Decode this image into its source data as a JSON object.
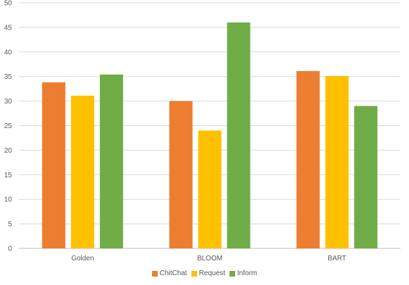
{
  "chart_data": {
    "type": "bar",
    "categories": [
      "Golden",
      "BLOOM",
      "BART"
    ],
    "series": [
      {
        "name": "ChitChat",
        "color": "#ED7D31",
        "values": [
          33.8,
          30.0,
          36.1
        ]
      },
      {
        "name": "Request",
        "color": "#FFC000",
        "values": [
          31.1,
          24.0,
          35.1
        ]
      },
      {
        "name": "Inform",
        "color": "#70AD47",
        "values": [
          35.4,
          46.0,
          29.0
        ]
      }
    ],
    "yticks": [
      "0",
      "5",
      "10",
      "15",
      "20",
      "25",
      "30",
      "35",
      "40",
      "45",
      "50"
    ],
    "ylim": [
      0,
      50
    ],
    "title": "",
    "xlabel": "",
    "ylabel": "",
    "grid": true,
    "legend_position": "bottom"
  }
}
